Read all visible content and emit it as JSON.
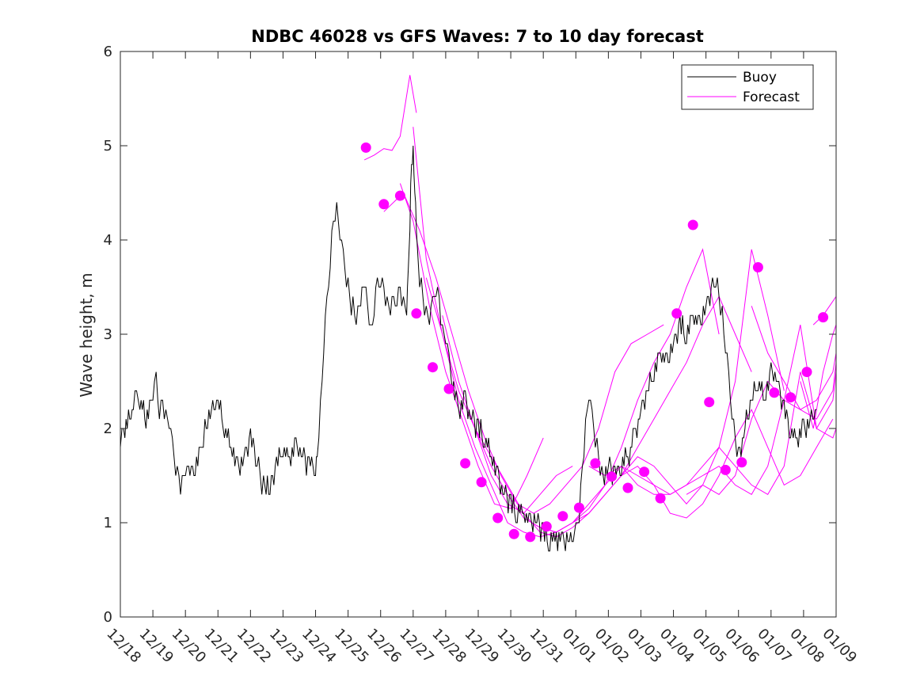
{
  "chart_data": {
    "type": "line",
    "title": "NDBC 46028 vs GFS Waves: 7 to 10 day forecast",
    "xlabel": "",
    "ylabel": "Wave height, m",
    "ylim": [
      0,
      6
    ],
    "yticks": [
      0,
      1,
      2,
      3,
      4,
      5,
      6
    ],
    "xlim": [
      0,
      22
    ],
    "xtick_labels": [
      "12/18",
      "12/19",
      "12/20",
      "12/21",
      "12/22",
      "12/23",
      "12/24",
      "12/25",
      "12/26",
      "12/27",
      "12/28",
      "12/29",
      "12/30",
      "12/31",
      "01/01",
      "01/02",
      "01/03",
      "01/04",
      "01/05",
      "01/06",
      "01/07",
      "01/08",
      "01/09"
    ],
    "grid": false,
    "legend_position": "top-right",
    "legend": [
      {
        "label": "Buoy",
        "color": "#000000"
      },
      {
        "label": "Forecast",
        "color": "#ff00ff"
      }
    ],
    "buoy": {
      "name": "Buoy",
      "color": "#000000",
      "x": [
        0,
        0.1,
        0.25,
        0.4,
        0.5,
        0.6,
        0.75,
        0.9,
        1.0,
        1.1,
        1.2,
        1.3,
        1.4,
        1.5,
        1.6,
        1.7,
        1.8,
        1.9,
        2.0,
        2.1,
        2.3,
        2.5,
        2.6,
        2.8,
        3.0,
        3.2,
        3.4,
        3.6,
        3.8,
        4.0,
        4.2,
        4.3,
        4.4,
        4.6,
        4.8,
        5.0,
        5.2,
        5.4,
        5.6,
        5.8,
        6.0,
        6.05,
        6.15,
        6.25,
        6.35,
        6.45,
        6.55,
        6.65,
        6.75,
        6.85,
        6.95,
        7.05,
        7.15,
        7.25,
        7.35,
        7.5,
        7.6,
        7.7,
        7.8,
        7.9,
        8.0,
        8.1,
        8.2,
        8.3,
        8.4,
        8.5,
        8.6,
        8.7,
        8.8,
        8.85,
        8.9,
        8.95,
        9.0,
        9.05,
        9.1,
        9.2,
        9.3,
        9.4,
        9.5,
        9.6,
        9.7,
        9.8,
        9.9,
        10.0,
        10.1,
        10.2,
        10.4,
        10.6,
        10.8,
        11.0,
        11.2,
        11.4,
        11.6,
        11.8,
        12.0,
        12.2,
        12.4,
        12.6,
        12.8,
        13.0,
        13.2,
        13.4,
        13.6,
        13.8,
        14.0,
        14.1,
        14.2,
        14.3,
        14.4,
        14.5,
        14.6,
        14.7,
        14.8,
        15.0,
        15.2,
        15.4,
        15.6,
        15.8,
        16.0,
        16.2,
        16.4,
        16.6,
        16.8,
        17.0,
        17.2,
        17.4,
        17.6,
        17.8,
        18.0,
        18.2,
        18.3,
        18.4,
        18.5,
        18.6,
        18.7,
        18.8,
        18.9,
        19.0,
        19.2,
        19.4,
        19.6,
        19.8,
        20.0,
        20.2,
        20.4,
        20.6,
        20.8,
        21.0,
        21.2,
        21.4
      ],
      "y": [
        1.9,
        2.0,
        2.1,
        2.2,
        2.4,
        2.3,
        2.1,
        2.2,
        2.3,
        2.5,
        2.2,
        2.3,
        2.1,
        2.0,
        1.8,
        1.6,
        1.5,
        1.4,
        1.5,
        1.5,
        1.6,
        1.8,
        2.0,
        2.2,
        2.3,
        2.0,
        1.8,
        1.6,
        1.7,
        1.9,
        1.7,
        1.5,
        1.4,
        1.4,
        1.6,
        1.8,
        1.7,
        1.8,
        1.7,
        1.6,
        1.6,
        1.7,
        2.2,
        2.8,
        3.3,
        3.8,
        4.2,
        4.3,
        4.0,
        3.8,
        3.6,
        3.4,
        3.3,
        3.1,
        3.2,
        3.6,
        3.3,
        3.0,
        3.2,
        3.5,
        3.6,
        3.5,
        3.3,
        3.2,
        3.3,
        3.4,
        3.5,
        3.3,
        3.2,
        3.6,
        4.2,
        4.8,
        4.9,
        4.5,
        4.0,
        3.6,
        3.4,
        3.2,
        3.1,
        3.3,
        3.5,
        3.4,
        3.0,
        2.9,
        2.7,
        2.5,
        2.2,
        2.3,
        2.1,
        2.0,
        1.9,
        1.7,
        1.5,
        1.3,
        1.2,
        1.1,
        1.1,
        1.0,
        1.0,
        0.9,
        0.8,
        0.85,
        0.8,
        0.8,
        0.9,
        1.1,
        1.6,
        2.0,
        2.3,
        2.1,
        1.9,
        1.7,
        1.5,
        1.6,
        1.5,
        1.6,
        1.7,
        1.9,
        2.2,
        2.4,
        2.6,
        2.8,
        2.7,
        2.9,
        3.1,
        3.0,
        3.2,
        3.1,
        3.3,
        3.5,
        3.6,
        3.4,
        3.2,
        2.8,
        2.5,
        2.2,
        1.9,
        1.7,
        2.0,
        2.3,
        2.5,
        2.3,
        2.6,
        2.5,
        2.2,
        2.0,
        1.9,
        2.0,
        2.1,
        2.2
      ]
    },
    "forecast_series": [
      {
        "name": "Forecast",
        "x": [
          7.5,
          7.8,
          8.1,
          8.35,
          8.6,
          8.9,
          9.1
        ],
        "y": [
          4.85,
          4.9,
          4.97,
          4.95,
          5.1,
          5.75,
          5.35
        ]
      },
      {
        "name": "Forecast",
        "x": [
          8.6,
          9.0,
          9.5,
          10.0,
          10.5,
          11.0,
          11.5,
          12.0,
          12.5,
          13.0
        ],
        "y": [
          4.6,
          4.2,
          3.3,
          2.6,
          2.1,
          1.6,
          1.2,
          1.15,
          1.5,
          1.9
        ]
      },
      {
        "name": "Forecast",
        "x": [
          9.0,
          9.4,
          9.9,
          10.4,
          10.9,
          11.4,
          11.9,
          12.4,
          12.9,
          13.4,
          13.9
        ],
        "y": [
          5.2,
          3.8,
          3.0,
          2.4,
          2.0,
          1.5,
          1.2,
          1.1,
          1.3,
          1.5,
          1.6
        ]
      },
      {
        "name": "Forecast",
        "x": [
          8.1,
          8.7,
          9.2,
          9.7,
          10.2,
          10.7,
          11.2,
          11.7,
          12.2,
          12.7,
          13.2,
          13.7,
          14.2,
          14.7,
          15.2,
          15.7,
          16.2,
          16.7
        ],
        "y": [
          4.3,
          4.5,
          4.1,
          3.6,
          3.0,
          2.4,
          1.9,
          1.5,
          1.2,
          1.1,
          1.2,
          1.4,
          1.6,
          2.0,
          2.6,
          2.9,
          3.0,
          3.1
        ]
      },
      {
        "name": "Forecast",
        "x": [
          9.4,
          9.9,
          10.4,
          10.9,
          11.4,
          11.9,
          12.4,
          12.9,
          13.4,
          13.9,
          14.4,
          14.9,
          15.4,
          15.9,
          16.4,
          16.9,
          17.4,
          17.9,
          18.4
        ],
        "y": [
          3.6,
          3.0,
          2.3,
          1.8,
          1.4,
          1.0,
          0.9,
          0.85,
          0.9,
          1.0,
          1.15,
          1.4,
          1.8,
          2.3,
          2.7,
          3.0,
          3.5,
          3.9,
          3.0
        ]
      },
      {
        "name": "Forecast",
        "x": [
          9.9,
          10.4,
          10.9,
          11.4,
          11.9,
          12.4,
          12.9,
          13.4,
          13.9,
          14.4,
          14.9,
          15.4,
          15.9,
          16.4,
          16.9,
          17.4,
          17.9,
          18.4,
          18.9,
          19.4
        ],
        "y": [
          3.2,
          2.5,
          2.0,
          1.6,
          1.3,
          1.05,
          0.95,
          0.9,
          1.0,
          1.1,
          1.3,
          1.5,
          1.8,
          2.1,
          2.4,
          2.7,
          3.1,
          3.4,
          3.0,
          2.6
        ]
      },
      {
        "name": "Forecast",
        "x": [
          10.9,
          11.4,
          11.9,
          12.4,
          12.9,
          13.4,
          13.9,
          14.4,
          14.9,
          15.4,
          15.9,
          16.4,
          16.9,
          17.4,
          17.9,
          18.4,
          18.9,
          19.4,
          19.9,
          20.4
        ],
        "y": [
          2.0,
          1.7,
          1.4,
          1.1,
          0.9,
          0.85,
          0.95,
          1.1,
          1.3,
          1.5,
          1.7,
          1.6,
          1.4,
          1.2,
          1.4,
          1.8,
          2.5,
          3.9,
          3.2,
          2.4
        ]
      },
      {
        "name": "Forecast",
        "x": [
          12.4,
          12.9,
          13.4,
          13.9,
          14.4,
          14.9,
          15.4,
          15.9,
          16.4,
          16.9,
          17.4,
          17.9,
          18.4,
          18.9,
          19.4,
          19.9,
          20.4,
          20.9,
          21.4,
          21.9
        ],
        "y": [
          1.05,
          0.95,
          0.9,
          1.0,
          1.2,
          1.4,
          1.6,
          1.5,
          1.4,
          1.1,
          1.05,
          1.2,
          1.5,
          1.9,
          2.2,
          1.8,
          1.4,
          1.5,
          1.8,
          2.1
        ]
      },
      {
        "name": "Forecast",
        "x": [
          14.4,
          14.9,
          15.4,
          15.9,
          16.4,
          16.9,
          17.4,
          17.9,
          18.4,
          18.9,
          19.4,
          19.9,
          20.4,
          20.9,
          21.4,
          21.9,
          22.0
        ],
        "y": [
          1.6,
          1.5,
          1.6,
          1.4,
          1.3,
          1.3,
          1.4,
          1.6,
          1.8,
          1.6,
          1.4,
          1.3,
          1.6,
          2.6,
          2.0,
          1.9,
          2.0
        ]
      },
      {
        "name": "Forecast",
        "x": [
          15.4,
          15.9,
          16.4,
          16.9,
          17.4,
          17.9,
          18.4,
          18.9,
          19.4,
          19.9,
          20.4,
          20.9,
          21.4,
          21.9,
          22.0
        ],
        "y": [
          1.5,
          1.6,
          1.4,
          1.3,
          1.4,
          1.5,
          1.6,
          1.4,
          1.3,
          1.6,
          2.3,
          3.1,
          2.0,
          2.3,
          2.6
        ]
      },
      {
        "name": "Forecast",
        "x": [
          17.4,
          17.9,
          18.4,
          18.9,
          19.4,
          19.9,
          20.4,
          20.9,
          21.4,
          21.9,
          22.0
        ],
        "y": [
          1.3,
          1.4,
          1.3,
          1.5,
          2.1,
          2.5,
          2.3,
          2.2,
          2.1,
          2.4,
          2.7
        ]
      },
      {
        "name": "Forecast",
        "x": [
          19.4,
          19.9,
          20.4,
          20.9,
          21.4,
          21.9,
          22.0
        ],
        "y": [
          3.3,
          2.8,
          2.5,
          2.2,
          2.3,
          2.6,
          2.8
        ]
      },
      {
        "name": "Forecast",
        "x": [
          20.9,
          21.3,
          21.6,
          21.9,
          22.0
        ],
        "y": [
          2.5,
          2.0,
          2.6,
          3.0,
          3.1
        ]
      },
      {
        "name": "Forecast",
        "x": [
          21.3,
          21.6,
          21.8,
          22.0
        ],
        "y": [
          3.1,
          3.2,
          3.3,
          3.4
        ]
      }
    ],
    "forecast_markers": {
      "name": "Forecast",
      "color": "#ff00ff",
      "x": [
        7.55,
        8.1,
        8.6,
        9.1,
        9.6,
        10.1,
        10.6,
        11.1,
        11.6,
        12.1,
        12.6,
        13.1,
        13.6,
        14.1,
        14.6,
        15.1,
        15.6,
        16.1,
        16.6,
        17.1,
        17.6,
        18.1,
        18.6,
        19.1,
        19.6,
        20.1,
        20.6,
        21.1,
        21.6
      ],
      "y": [
        4.98,
        4.38,
        4.47,
        3.22,
        2.65,
        2.42,
        1.63,
        1.43,
        1.05,
        0.88,
        0.85,
        0.96,
        1.07,
        1.16,
        1.63,
        1.49,
        1.37,
        1.54,
        1.26,
        3.22,
        4.16,
        2.28,
        1.56,
        1.64,
        3.71,
        2.38,
        2.33,
        2.6,
        3.18
      ]
    }
  }
}
